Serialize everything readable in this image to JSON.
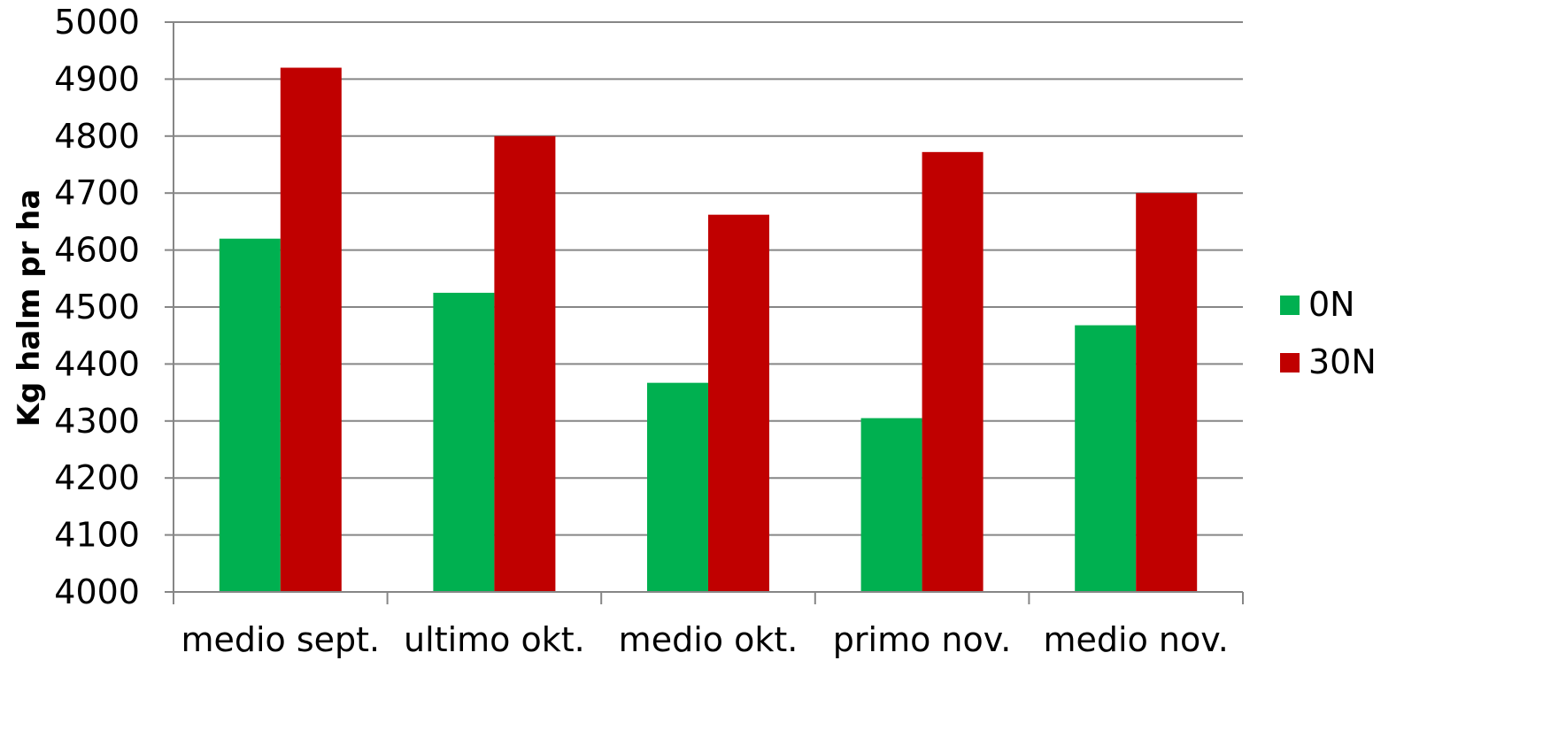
{
  "chart_data": {
    "type": "bar",
    "title": "",
    "xlabel": "",
    "ylabel": "Kg halm pr ha",
    "ylim": [
      4000,
      5000
    ],
    "yticks": [
      "4000",
      "4100",
      "4200",
      "4300",
      "4400",
      "4500",
      "4600",
      "4700",
      "4800",
      "4900",
      "5000"
    ],
    "grid": true,
    "legend_position": "right",
    "categories": [
      "medio sept.",
      "ultimo okt.",
      "medio okt.",
      "primo nov.",
      "medio nov."
    ],
    "series": [
      {
        "name": "0N",
        "color": "#00b050",
        "values": [
          4620,
          4525,
          4367,
          4305,
          4468
        ]
      },
      {
        "name": "30N",
        "color": "#c00000",
        "values": [
          4920,
          4800,
          4662,
          4772,
          4700
        ]
      }
    ]
  }
}
